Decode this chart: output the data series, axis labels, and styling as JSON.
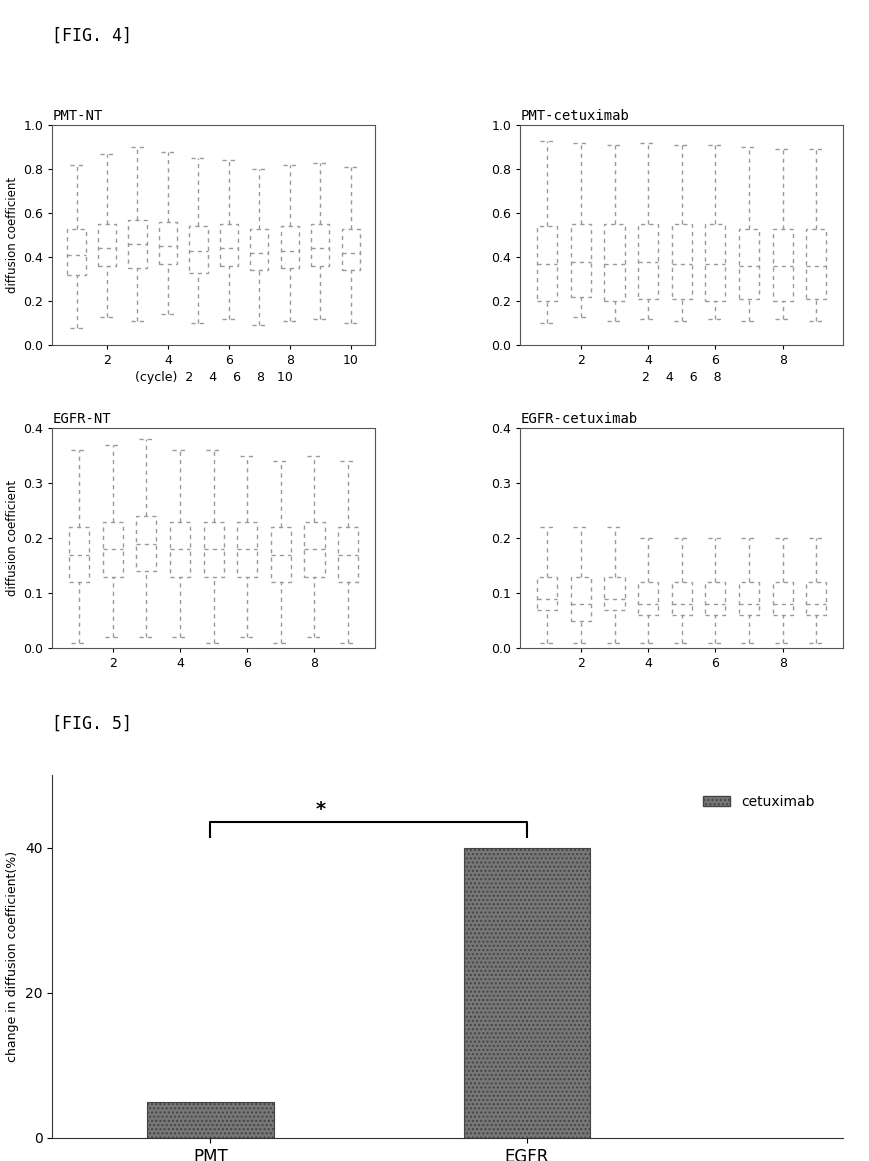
{
  "fig4_label": "[FIG. 4]",
  "fig5_label": "[FIG. 5]",
  "pmt_nt_title": "PMT-NT",
  "pmt_cet_title": "PMT-cetuximab",
  "egfr_nt_title": "EGFR-NT",
  "egfr_cet_title": "EGFR-cetuximab",
  "ylabel_diffusion": "diffusion coefficient",
  "fig5_ylabel": "change in diffusion coefficient(%)",
  "fig5_categories": [
    "PMT",
    "EGFR"
  ],
  "fig5_values": [
    5.0,
    40.0
  ],
  "fig5_ylim": [
    0,
    50
  ],
  "fig5_yticks": [
    0,
    20,
    40
  ],
  "fig5_legend_label": "cetuximab",
  "bar_facecolor": "#777777",
  "bar_edgecolor": "#444444",
  "box_linecolor": "#999999",
  "background_color": "#ffffff",
  "pmt_ylim": [
    0,
    1.0
  ],
  "pmt_yticks": [
    0,
    0.2,
    0.4,
    0.6,
    0.8,
    1.0
  ],
  "egfr_ylim": [
    0,
    0.4
  ],
  "egfr_yticks": [
    0,
    0.1,
    0.2,
    0.3,
    0.4
  ],
  "pmt_nt_xtick_labels": [
    "2",
    "4",
    "6",
    "8",
    "10"
  ],
  "pmt_cet_xtick_labels": [
    "2",
    "4",
    "6",
    "8"
  ],
  "egfr_nt_xtick_labels": [
    "2",
    "4",
    "6",
    "8"
  ],
  "egfr_cet_xtick_labels": [
    "2",
    "4",
    "6",
    "8"
  ],
  "pmt_nt_boxes": [
    {
      "whislo": 0.08,
      "q1": 0.32,
      "med": 0.41,
      "q3": 0.53,
      "whishi": 0.82
    },
    {
      "whislo": 0.13,
      "q1": 0.36,
      "med": 0.44,
      "q3": 0.55,
      "whishi": 0.87
    },
    {
      "whislo": 0.11,
      "q1": 0.35,
      "med": 0.46,
      "q3": 0.57,
      "whishi": 0.9
    },
    {
      "whislo": 0.14,
      "q1": 0.37,
      "med": 0.45,
      "q3": 0.56,
      "whishi": 0.88
    },
    {
      "whislo": 0.1,
      "q1": 0.33,
      "med": 0.43,
      "q3": 0.54,
      "whishi": 0.85
    },
    {
      "whislo": 0.12,
      "q1": 0.36,
      "med": 0.44,
      "q3": 0.55,
      "whishi": 0.84
    },
    {
      "whislo": 0.09,
      "q1": 0.34,
      "med": 0.42,
      "q3": 0.53,
      "whishi": 0.8
    },
    {
      "whislo": 0.11,
      "q1": 0.35,
      "med": 0.43,
      "q3": 0.54,
      "whishi": 0.82
    },
    {
      "whislo": 0.12,
      "q1": 0.36,
      "med": 0.44,
      "q3": 0.55,
      "whishi": 0.83
    },
    {
      "whislo": 0.1,
      "q1": 0.34,
      "med": 0.42,
      "q3": 0.53,
      "whishi": 0.81
    }
  ],
  "pmt_cet_boxes": [
    {
      "whislo": 0.1,
      "q1": 0.2,
      "med": 0.37,
      "q3": 0.54,
      "whishi": 0.93
    },
    {
      "whislo": 0.13,
      "q1": 0.22,
      "med": 0.38,
      "q3": 0.55,
      "whishi": 0.92
    },
    {
      "whislo": 0.11,
      "q1": 0.2,
      "med": 0.37,
      "q3": 0.55,
      "whishi": 0.91
    },
    {
      "whislo": 0.12,
      "q1": 0.21,
      "med": 0.38,
      "q3": 0.55,
      "whishi": 0.92
    },
    {
      "whislo": 0.11,
      "q1": 0.21,
      "med": 0.37,
      "q3": 0.55,
      "whishi": 0.91
    },
    {
      "whislo": 0.12,
      "q1": 0.2,
      "med": 0.37,
      "q3": 0.55,
      "whishi": 0.91
    },
    {
      "whislo": 0.11,
      "q1": 0.21,
      "med": 0.36,
      "q3": 0.53,
      "whishi": 0.9
    },
    {
      "whislo": 0.12,
      "q1": 0.2,
      "med": 0.36,
      "q3": 0.53,
      "whishi": 0.89
    },
    {
      "whislo": 0.11,
      "q1": 0.21,
      "med": 0.36,
      "q3": 0.53,
      "whishi": 0.89
    }
  ],
  "egfr_nt_boxes": [
    {
      "whislo": 0.01,
      "q1": 0.12,
      "med": 0.17,
      "q3": 0.22,
      "whishi": 0.36
    },
    {
      "whislo": 0.02,
      "q1": 0.13,
      "med": 0.18,
      "q3": 0.23,
      "whishi": 0.37
    },
    {
      "whislo": 0.02,
      "q1": 0.14,
      "med": 0.19,
      "q3": 0.24,
      "whishi": 0.38
    },
    {
      "whislo": 0.02,
      "q1": 0.13,
      "med": 0.18,
      "q3": 0.23,
      "whishi": 0.36
    },
    {
      "whislo": 0.01,
      "q1": 0.13,
      "med": 0.18,
      "q3": 0.23,
      "whishi": 0.36
    },
    {
      "whislo": 0.02,
      "q1": 0.13,
      "med": 0.18,
      "q3": 0.23,
      "whishi": 0.35
    },
    {
      "whislo": 0.01,
      "q1": 0.12,
      "med": 0.17,
      "q3": 0.22,
      "whishi": 0.34
    },
    {
      "whislo": 0.02,
      "q1": 0.13,
      "med": 0.18,
      "q3": 0.23,
      "whishi": 0.35
    },
    {
      "whislo": 0.01,
      "q1": 0.12,
      "med": 0.17,
      "q3": 0.22,
      "whishi": 0.34
    }
  ],
  "egfr_cet_boxes": [
    {
      "whislo": 0.01,
      "q1": 0.07,
      "med": 0.09,
      "q3": 0.13,
      "whishi": 0.22
    },
    {
      "whislo": 0.01,
      "q1": 0.05,
      "med": 0.08,
      "q3": 0.13,
      "whishi": 0.22
    },
    {
      "whislo": 0.01,
      "q1": 0.07,
      "med": 0.09,
      "q3": 0.13,
      "whishi": 0.22
    },
    {
      "whislo": 0.01,
      "q1": 0.06,
      "med": 0.08,
      "q3": 0.12,
      "whishi": 0.2
    },
    {
      "whislo": 0.01,
      "q1": 0.06,
      "med": 0.08,
      "q3": 0.12,
      "whishi": 0.2
    },
    {
      "whislo": 0.01,
      "q1": 0.06,
      "med": 0.08,
      "q3": 0.12,
      "whishi": 0.2
    },
    {
      "whislo": 0.01,
      "q1": 0.06,
      "med": 0.08,
      "q3": 0.12,
      "whishi": 0.2
    },
    {
      "whislo": 0.01,
      "q1": 0.06,
      "med": 0.08,
      "q3": 0.12,
      "whishi": 0.2
    },
    {
      "whislo": 0.01,
      "q1": 0.06,
      "med": 0.08,
      "q3": 0.12,
      "whishi": 0.2
    }
  ]
}
